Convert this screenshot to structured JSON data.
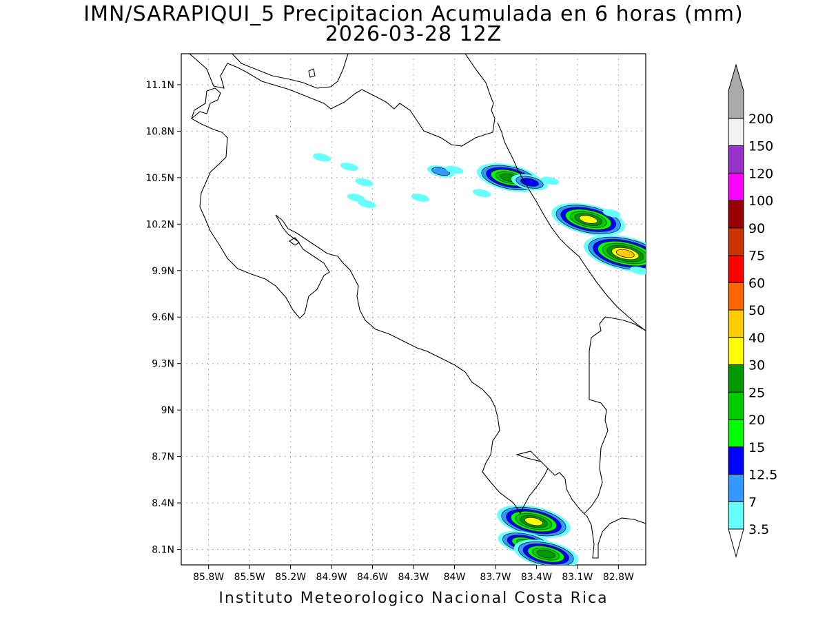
{
  "title": {
    "line1": "IMN/SARAPIQUI_5 Precipitacion Acumulada en 6 horas (mm)",
    "line2": "2026-03-28 12Z"
  },
  "footer": "Instituto Meteorologico Nacional Costa Rica",
  "map": {
    "lon_range": [
      -86.0,
      -82.6
    ],
    "lat_range": [
      8.0,
      11.3
    ],
    "x_ticks": [
      {
        "value": -85.8,
        "label": "85.8W"
      },
      {
        "value": -85.5,
        "label": "85.5W"
      },
      {
        "value": -85.2,
        "label": "85.2W"
      },
      {
        "value": -84.9,
        "label": "84.9W"
      },
      {
        "value": -84.6,
        "label": "84.6W"
      },
      {
        "value": -84.3,
        "label": "84.3W"
      },
      {
        "value": -84.0,
        "label": "84W"
      },
      {
        "value": -83.7,
        "label": "83.7W"
      },
      {
        "value": -83.4,
        "label": "83.4W"
      },
      {
        "value": -83.1,
        "label": "83.1W"
      },
      {
        "value": -82.8,
        "label": "82.8W"
      }
    ],
    "y_ticks": [
      {
        "value": 11.1,
        "label": "11.1N"
      },
      {
        "value": 10.8,
        "label": "10.8N"
      },
      {
        "value": 10.5,
        "label": "10.5N"
      },
      {
        "value": 10.2,
        "label": "10.2N"
      },
      {
        "value": 9.9,
        "label": "9.9N"
      },
      {
        "value": 9.6,
        "label": "9.6N"
      },
      {
        "value": 9.3,
        "label": "9.3N"
      },
      {
        "value": 9.0,
        "label": "9N"
      },
      {
        "value": 8.7,
        "label": "8.7N"
      },
      {
        "value": 8.4,
        "label": "8.4N"
      },
      {
        "value": 8.1,
        "label": "8.1N"
      }
    ],
    "grid": "dotted"
  },
  "colorbar": {
    "labels": [
      "3.5",
      "7",
      "12.5",
      "15",
      "20",
      "25",
      "30",
      "40",
      "50",
      "60",
      "75",
      "90",
      "100",
      "120",
      "150",
      "200"
    ],
    "colors": [
      "#66ffff",
      "#3399ff",
      "#0000ff",
      "#00ff00",
      "#00cc00",
      "#009900",
      "#ffff00",
      "#ffcc00",
      "#ff6600",
      "#ff0000",
      "#cc3300",
      "#990000",
      "#ff00ff",
      "#9933cc",
      "#f2f2f2",
      "#aaaaaa"
    ],
    "under_color": "#ffffff",
    "over_color": "#aaaaaa"
  },
  "precip_cells": [
    {
      "lon": -84.77,
      "lat": 10.57,
      "value": 3.5
    },
    {
      "lon": -84.97,
      "lat": 10.63,
      "value": 3.5
    },
    {
      "lon": -84.66,
      "lat": 10.47,
      "value": 3.5
    },
    {
      "lon": -84.64,
      "lat": 10.33,
      "value": 3.5
    },
    {
      "lon": -84.72,
      "lat": 10.37,
      "value": 3.5
    },
    {
      "lon": -84.25,
      "lat": 10.37,
      "value": 3.5
    },
    {
      "lon": -84.1,
      "lat": 10.54,
      "value": 7
    },
    {
      "lon": -84.0,
      "lat": 10.55,
      "value": 3.5
    },
    {
      "lon": -83.8,
      "lat": 10.4,
      "value": 3.5
    },
    {
      "lon": -83.6,
      "lat": 10.5,
      "value": 25
    },
    {
      "lon": -83.45,
      "lat": 10.47,
      "value": 12.5
    },
    {
      "lon": -83.3,
      "lat": 10.48,
      "value": 3.5
    },
    {
      "lon": -83.13,
      "lat": 10.25,
      "value": 12.5
    },
    {
      "lon": -83.02,
      "lat": 10.23,
      "value": 30
    },
    {
      "lon": -82.85,
      "lat": 10.27,
      "value": 3.5
    },
    {
      "lon": -82.75,
      "lat": 10.01,
      "value": 40
    },
    {
      "lon": -82.65,
      "lat": 9.9,
      "value": 3.5
    },
    {
      "lon": -83.42,
      "lat": 8.28,
      "value": 30
    },
    {
      "lon": -83.48,
      "lat": 8.14,
      "value": 20
    },
    {
      "lon": -83.33,
      "lat": 8.07,
      "value": 25
    }
  ]
}
